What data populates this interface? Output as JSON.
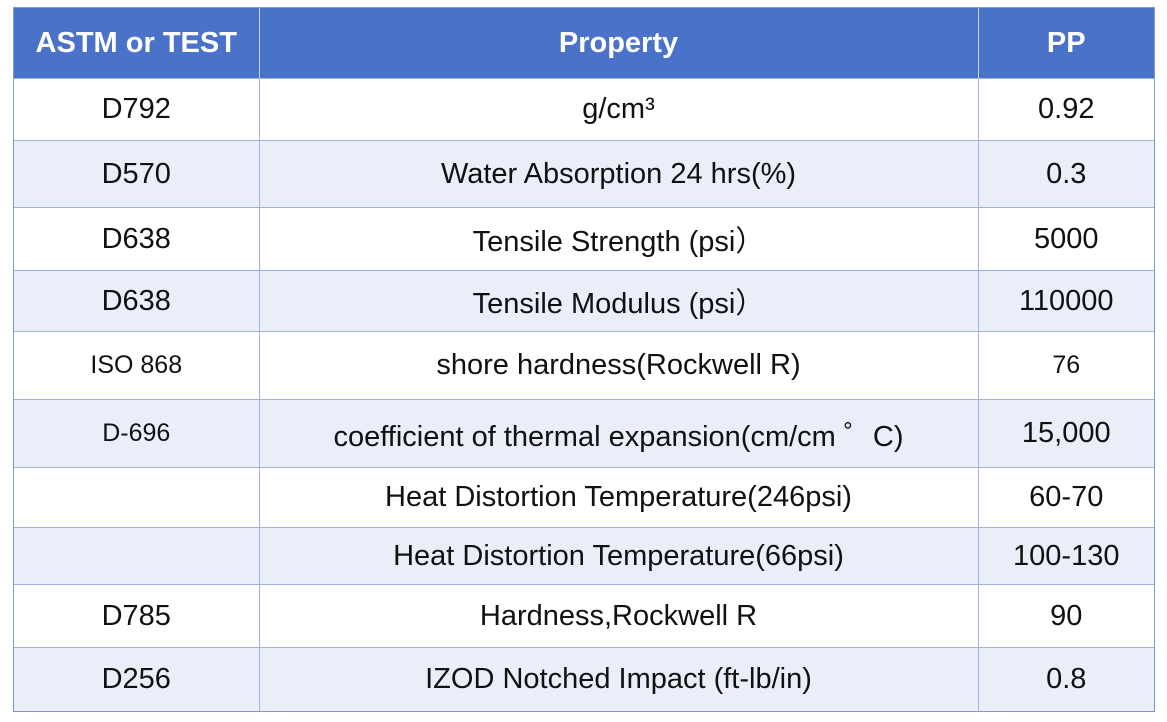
{
  "table": {
    "headers": [
      "ASTM or TEST",
      "Property",
      "PP"
    ],
    "rows": [
      {
        "test": "D792",
        "property": "g/cm³",
        "pp": "0.92"
      },
      {
        "test": "D570",
        "property": "Water Absorption 24 hrs(%)",
        "pp": "0.3"
      },
      {
        "test": "D638",
        "property": "Tensile Strength (psi）",
        "pp": "5000"
      },
      {
        "test": "D638",
        "property": "Tensile Modulus (psi）",
        "pp": "110000"
      },
      {
        "test": "ISO 868",
        "property": "shore hardness(Rockwell R)",
        "pp": "76"
      },
      {
        "test": "D-696",
        "property": "coefficient of thermal expansion(cm/cm ゜C)",
        "pp": "15,000"
      },
      {
        "test": "",
        "property": "Heat Distortion Temperature(246psi)",
        "pp": "60-70"
      },
      {
        "test": "",
        "property": "Heat Distortion Temperature(66psi)",
        "pp": "100-130"
      },
      {
        "test": "D785",
        "property": "Hardness,Rockwell R",
        "pp": "90"
      },
      {
        "test": "D256",
        "property": "IZOD Notched Impact (ft-lb/in)",
        "pp": "0.8"
      }
    ]
  },
  "colors": {
    "header_bg": "#4a72c9",
    "alt_row_bg": "#e9eef8",
    "border": "#9fb3db"
  }
}
